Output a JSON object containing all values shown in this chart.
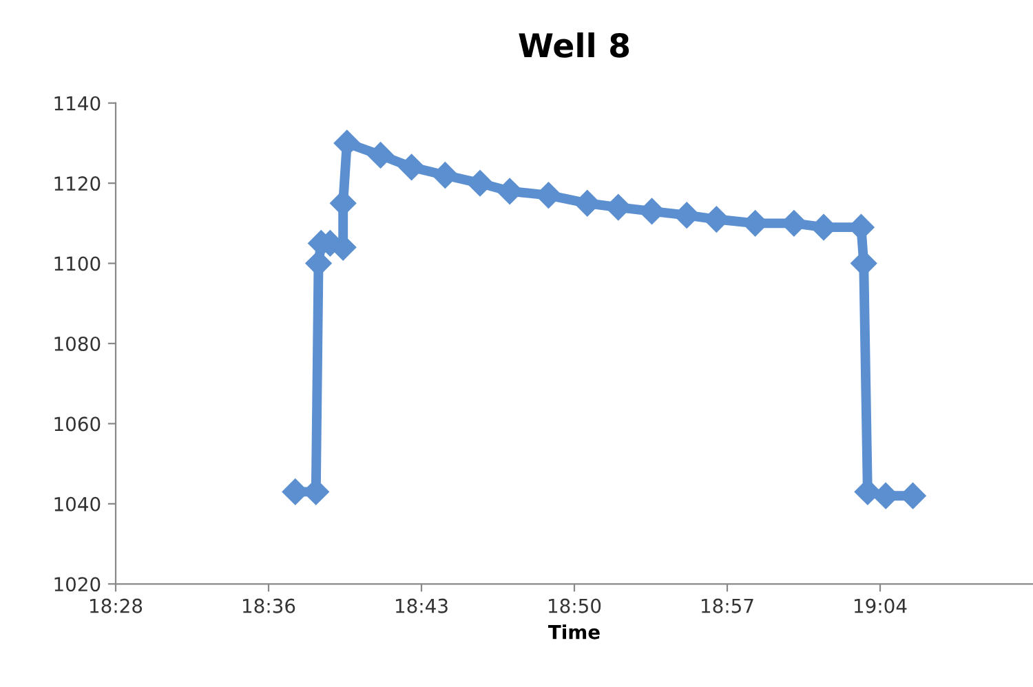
{
  "chart_data": {
    "type": "line",
    "title": "Well 8",
    "xlabel": "Time",
    "x": [
      18.614,
      18.63,
      18.632,
      18.634,
      18.641,
      18.651,
      18.651,
      18.654,
      18.68,
      18.704,
      18.73,
      18.757,
      18.78,
      18.81,
      18.84,
      18.864,
      18.89,
      18.917,
      18.94,
      18.97,
      19.0,
      19.023,
      19.052,
      19.054,
      19.057,
      19.071,
      19.092
    ],
    "series": [
      {
        "color": "#5b8fd0",
        "values": [
          1043,
          1043,
          1100,
          1105,
          1105,
          1104,
          1115,
          1130,
          1127,
          1124,
          1122,
          1120,
          1118,
          1117,
          1115,
          1114,
          1113,
          1112,
          1111,
          1110,
          1110,
          1109,
          1109,
          1100,
          1043,
          1042,
          1042
        ]
      }
    ],
    "xlim": [
      18.475,
      19.185
    ],
    "xticks": [
      {
        "value": 18.475,
        "label": "18:28"
      },
      {
        "value": 18.59333,
        "label": "18:36"
      },
      {
        "value": 18.71167,
        "label": "18:43"
      },
      {
        "value": 18.83,
        "label": "18:50"
      },
      {
        "value": 18.94833,
        "label": "18:57"
      },
      {
        "value": 19.06667,
        "label": "19:04"
      }
    ],
    "ylim": [
      1020,
      1140
    ],
    "yticks": [
      1020,
      1040,
      1060,
      1080,
      1100,
      1120,
      1140
    ],
    "marker": "diamond",
    "line_style": "solid",
    "grid": false,
    "legend": false
  }
}
